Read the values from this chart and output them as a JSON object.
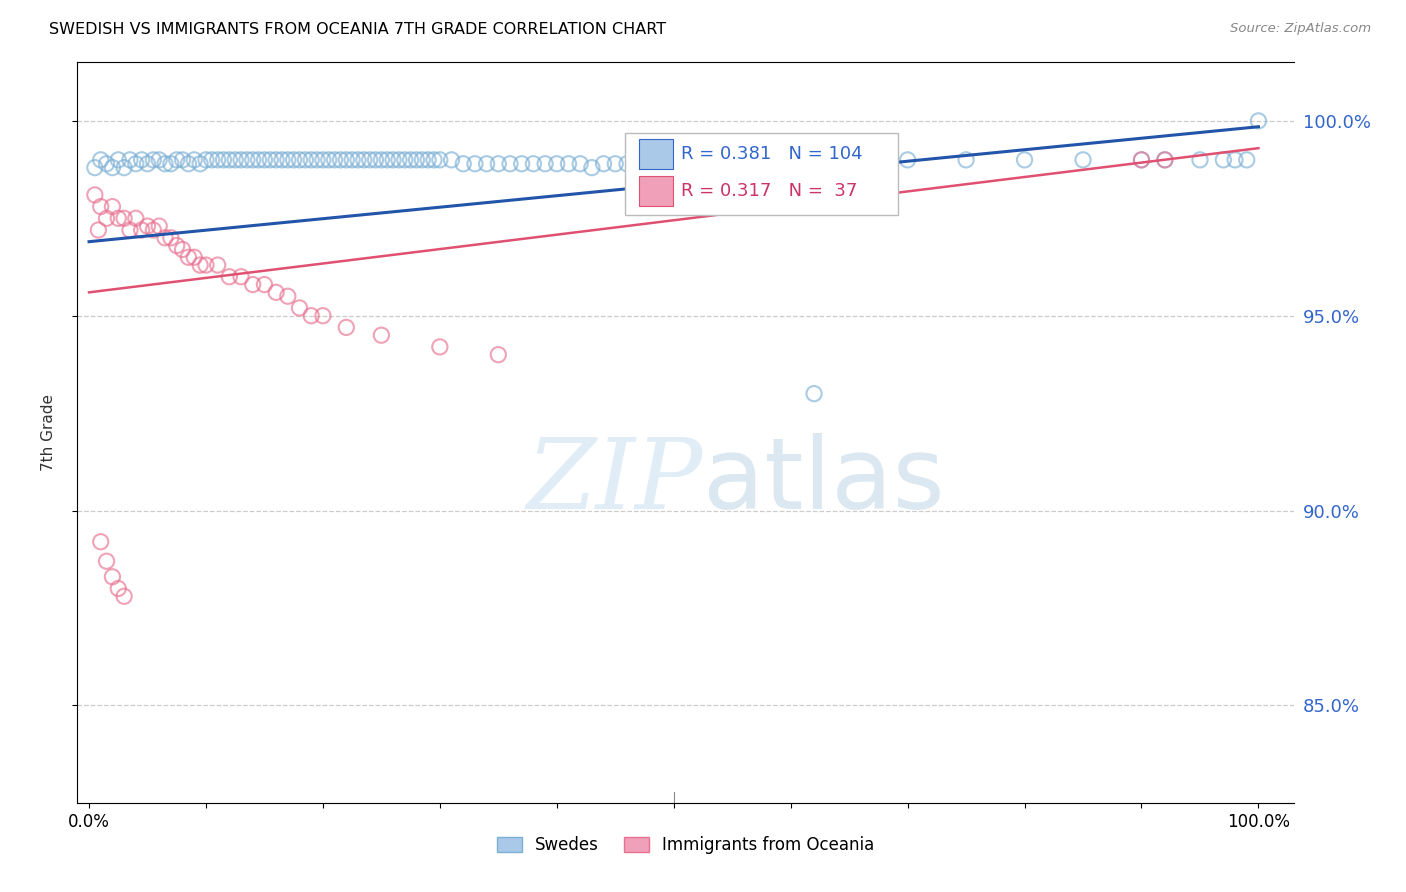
{
  "title": "SWEDISH VS IMMIGRANTS FROM OCEANIA 7TH GRADE CORRELATION CHART",
  "source": "Source: ZipAtlas.com",
  "ylabel": "7th Grade",
  "ytick_labels": [
    "100.0%",
    "95.0%",
    "90.0%",
    "85.0%"
  ],
  "ytick_values": [
    1.0,
    0.95,
    0.9,
    0.85
  ],
  "xlim": [
    -0.01,
    1.03
  ],
  "ylim": [
    0.825,
    1.015
  ],
  "r_blue": 0.381,
  "n_blue": 104,
  "r_pink": 0.317,
  "n_pink": 37,
  "blue_scatter_color": "#7bafd4",
  "pink_scatter_color": "#e87090",
  "blue_line_color": "#2255aa",
  "pink_line_color": "#e05070",
  "blue_scatter": {
    "x": [
      0.005,
      0.01,
      0.015,
      0.02,
      0.025,
      0.03,
      0.035,
      0.04,
      0.045,
      0.05,
      0.055,
      0.06,
      0.065,
      0.07,
      0.075,
      0.08,
      0.085,
      0.09,
      0.095,
      0.1,
      0.105,
      0.11,
      0.115,
      0.12,
      0.125,
      0.13,
      0.135,
      0.14,
      0.145,
      0.15,
      0.155,
      0.16,
      0.165,
      0.17,
      0.175,
      0.18,
      0.185,
      0.19,
      0.195,
      0.2,
      0.205,
      0.21,
      0.215,
      0.22,
      0.225,
      0.23,
      0.235,
      0.24,
      0.245,
      0.25,
      0.255,
      0.26,
      0.265,
      0.27,
      0.275,
      0.28,
      0.285,
      0.29,
      0.295,
      0.3,
      0.31,
      0.32,
      0.33,
      0.34,
      0.35,
      0.36,
      0.37,
      0.38,
      0.39,
      0.4,
      0.41,
      0.42,
      0.43,
      0.44,
      0.45,
      0.46,
      0.47,
      0.48,
      0.5,
      0.55,
      0.6,
      0.62,
      0.65,
      0.7,
      0.75,
      0.8,
      0.85,
      0.9,
      0.92,
      0.95,
      0.97,
      0.98,
      0.99,
      1.0
    ],
    "y": [
      0.988,
      0.99,
      0.989,
      0.988,
      0.99,
      0.988,
      0.99,
      0.989,
      0.99,
      0.989,
      0.99,
      0.99,
      0.989,
      0.989,
      0.99,
      0.99,
      0.989,
      0.99,
      0.989,
      0.99,
      0.99,
      0.99,
      0.99,
      0.99,
      0.99,
      0.99,
      0.99,
      0.99,
      0.99,
      0.99,
      0.99,
      0.99,
      0.99,
      0.99,
      0.99,
      0.99,
      0.99,
      0.99,
      0.99,
      0.99,
      0.99,
      0.99,
      0.99,
      0.99,
      0.99,
      0.99,
      0.99,
      0.99,
      0.99,
      0.99,
      0.99,
      0.99,
      0.99,
      0.99,
      0.99,
      0.99,
      0.99,
      0.99,
      0.99,
      0.99,
      0.99,
      0.989,
      0.989,
      0.989,
      0.989,
      0.989,
      0.989,
      0.989,
      0.989,
      0.989,
      0.989,
      0.989,
      0.988,
      0.989,
      0.989,
      0.989,
      0.989,
      0.989,
      0.989,
      0.989,
      0.989,
      0.93,
      0.989,
      0.99,
      0.99,
      0.99,
      0.99,
      0.99,
      0.99,
      0.99,
      0.99,
      0.99,
      0.99,
      1.0
    ]
  },
  "pink_scatter": {
    "x": [
      0.005,
      0.008,
      0.01,
      0.015,
      0.02,
      0.025,
      0.03,
      0.035,
      0.04,
      0.045,
      0.05,
      0.055,
      0.06,
      0.065,
      0.07,
      0.075,
      0.08,
      0.085,
      0.09,
      0.095,
      0.1,
      0.11,
      0.12,
      0.13,
      0.14,
      0.15,
      0.16,
      0.17,
      0.18,
      0.19,
      0.2,
      0.22,
      0.25,
      0.3,
      0.35,
      0.9,
      0.92
    ],
    "y": [
      0.981,
      0.972,
      0.978,
      0.975,
      0.978,
      0.975,
      0.975,
      0.972,
      0.975,
      0.972,
      0.973,
      0.972,
      0.973,
      0.97,
      0.97,
      0.968,
      0.967,
      0.965,
      0.965,
      0.963,
      0.963,
      0.963,
      0.96,
      0.96,
      0.958,
      0.958,
      0.956,
      0.955,
      0.952,
      0.95,
      0.95,
      0.947,
      0.945,
      0.942,
      0.94,
      0.99,
      0.99
    ]
  },
  "pink_scatter_low": {
    "x": [
      0.01,
      0.015,
      0.02,
      0.025,
      0.03
    ],
    "y": [
      0.892,
      0.887,
      0.883,
      0.88,
      0.878
    ]
  },
  "blue_trendline": {
    "x_start": 0.0,
    "x_end": 1.0,
    "y_start": 0.969,
    "y_end": 0.9985
  },
  "pink_trendline": {
    "x_start": 0.0,
    "x_end": 1.0,
    "y_start": 0.956,
    "y_end": 0.993
  },
  "legend_entries": [
    {
      "label": "Swedes",
      "color": "#aac8e8"
    },
    {
      "label": "Immigrants from Oceania",
      "color": "#f0a0b8"
    }
  ],
  "watermark_zip": "ZIP",
  "watermark_atlas": "atlas"
}
